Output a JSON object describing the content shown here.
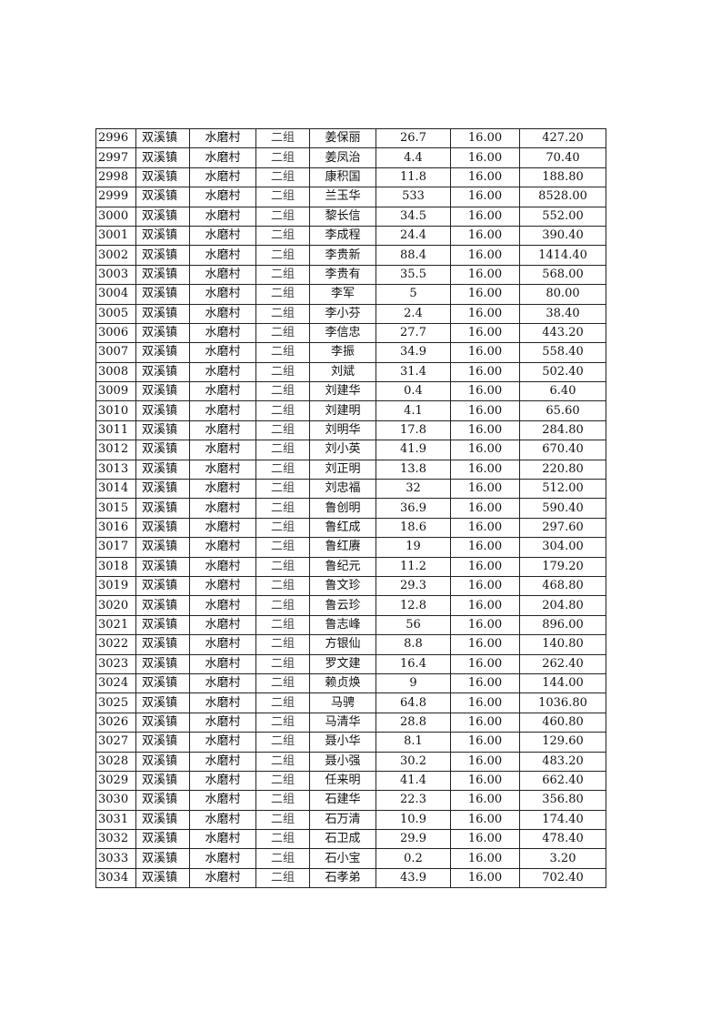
{
  "table": {
    "rows": [
      [
        "2996",
        "双溪镇",
        "水磨村",
        "二组",
        "姜保丽",
        "26.7",
        "16.00",
        "427.20"
      ],
      [
        "2997",
        "双溪镇",
        "水磨村",
        "二组",
        "姜凤治",
        "4.4",
        "16.00",
        "70.40"
      ],
      [
        "2998",
        "双溪镇",
        "水磨村",
        "二组",
        "康积国",
        "11.8",
        "16.00",
        "188.80"
      ],
      [
        "2999",
        "双溪镇",
        "水磨村",
        "二组",
        "兰玉华",
        "533",
        "16.00",
        "8528.00"
      ],
      [
        "3000",
        "双溪镇",
        "水磨村",
        "二组",
        "黎长信",
        "34.5",
        "16.00",
        "552.00"
      ],
      [
        "3001",
        "双溪镇",
        "水磨村",
        "二组",
        "李成程",
        "24.4",
        "16.00",
        "390.40"
      ],
      [
        "3002",
        "双溪镇",
        "水磨村",
        "二组",
        "李贵新",
        "88.4",
        "16.00",
        "1414.40"
      ],
      [
        "3003",
        "双溪镇",
        "水磨村",
        "二组",
        "李贵有",
        "35.5",
        "16.00",
        "568.00"
      ],
      [
        "3004",
        "双溪镇",
        "水磨村",
        "二组",
        "李军",
        "5",
        "16.00",
        "80.00"
      ],
      [
        "3005",
        "双溪镇",
        "水磨村",
        "二组",
        "李小芬",
        "2.4",
        "16.00",
        "38.40"
      ],
      [
        "3006",
        "双溪镇",
        "水磨村",
        "二组",
        "李信忠",
        "27.7",
        "16.00",
        "443.20"
      ],
      [
        "3007",
        "双溪镇",
        "水磨村",
        "二组",
        "李振",
        "34.9",
        "16.00",
        "558.40"
      ],
      [
        "3008",
        "双溪镇",
        "水磨村",
        "二组",
        "刘斌",
        "31.4",
        "16.00",
        "502.40"
      ],
      [
        "3009",
        "双溪镇",
        "水磨村",
        "二组",
        "刘建华",
        "0.4",
        "16.00",
        "6.40"
      ],
      [
        "3010",
        "双溪镇",
        "水磨村",
        "二组",
        "刘建明",
        "4.1",
        "16.00",
        "65.60"
      ],
      [
        "3011",
        "双溪镇",
        "水磨村",
        "二组",
        "刘明华",
        "17.8",
        "16.00",
        "284.80"
      ],
      [
        "3012",
        "双溪镇",
        "水磨村",
        "二组",
        "刘小英",
        "41.9",
        "16.00",
        "670.40"
      ],
      [
        "3013",
        "双溪镇",
        "水磨村",
        "二组",
        "刘正明",
        "13.8",
        "16.00",
        "220.80"
      ],
      [
        "3014",
        "双溪镇",
        "水磨村",
        "二组",
        "刘忠福",
        "32",
        "16.00",
        "512.00"
      ],
      [
        "3015",
        "双溪镇",
        "水磨村",
        "二组",
        "鲁创明",
        "36.9",
        "16.00",
        "590.40"
      ],
      [
        "3016",
        "双溪镇",
        "水磨村",
        "二组",
        "鲁红成",
        "18.6",
        "16.00",
        "297.60"
      ],
      [
        "3017",
        "双溪镇",
        "水磨村",
        "二组",
        "鲁红赓",
        "19",
        "16.00",
        "304.00"
      ],
      [
        "3018",
        "双溪镇",
        "水磨村",
        "二组",
        "鲁纪元",
        "11.2",
        "16.00",
        "179.20"
      ],
      [
        "3019",
        "双溪镇",
        "水磨村",
        "二组",
        "鲁文珍",
        "29.3",
        "16.00",
        "468.80"
      ],
      [
        "3020",
        "双溪镇",
        "水磨村",
        "二组",
        "鲁云珍",
        "12.8",
        "16.00",
        "204.80"
      ],
      [
        "3021",
        "双溪镇",
        "水磨村",
        "二组",
        "鲁志峰",
        "56",
        "16.00",
        "896.00"
      ],
      [
        "3022",
        "双溪镇",
        "水磨村",
        "二组",
        "方银仙",
        "8.8",
        "16.00",
        "140.80"
      ],
      [
        "3023",
        "双溪镇",
        "水磨村",
        "二组",
        "罗文建",
        "16.4",
        "16.00",
        "262.40"
      ],
      [
        "3024",
        "双溪镇",
        "水磨村",
        "二组",
        "赖贞焕",
        "9",
        "16.00",
        "144.00"
      ],
      [
        "3025",
        "双溪镇",
        "水磨村",
        "二组",
        "马骋",
        "64.8",
        "16.00",
        "1036.80"
      ],
      [
        "3026",
        "双溪镇",
        "水磨村",
        "二组",
        "马清华",
        "28.8",
        "16.00",
        "460.80"
      ],
      [
        "3027",
        "双溪镇",
        "水磨村",
        "二组",
        "聂小华",
        "8.1",
        "16.00",
        "129.60"
      ],
      [
        "3028",
        "双溪镇",
        "水磨村",
        "二组",
        "聂小强",
        "30.2",
        "16.00",
        "483.20"
      ],
      [
        "3029",
        "双溪镇",
        "水磨村",
        "二组",
        "任来明",
        "41.4",
        "16.00",
        "662.40"
      ],
      [
        "3030",
        "双溪镇",
        "水磨村",
        "二组",
        "石建华",
        "22.3",
        "16.00",
        "356.80"
      ],
      [
        "3031",
        "双溪镇",
        "水磨村",
        "二组",
        "石万清",
        "10.9",
        "16.00",
        "174.40"
      ],
      [
        "3032",
        "双溪镇",
        "水磨村",
        "二组",
        "石卫成",
        "29.9",
        "16.00",
        "478.40"
      ],
      [
        "3033",
        "双溪镇",
        "水磨村",
        "二组",
        "石小宝",
        "0.2",
        "16.00",
        "3.20"
      ],
      [
        "3034",
        "双溪镇",
        "水磨村",
        "二组",
        "石孝弟",
        "43.9",
        "16.00",
        "702.40"
      ]
    ]
  }
}
